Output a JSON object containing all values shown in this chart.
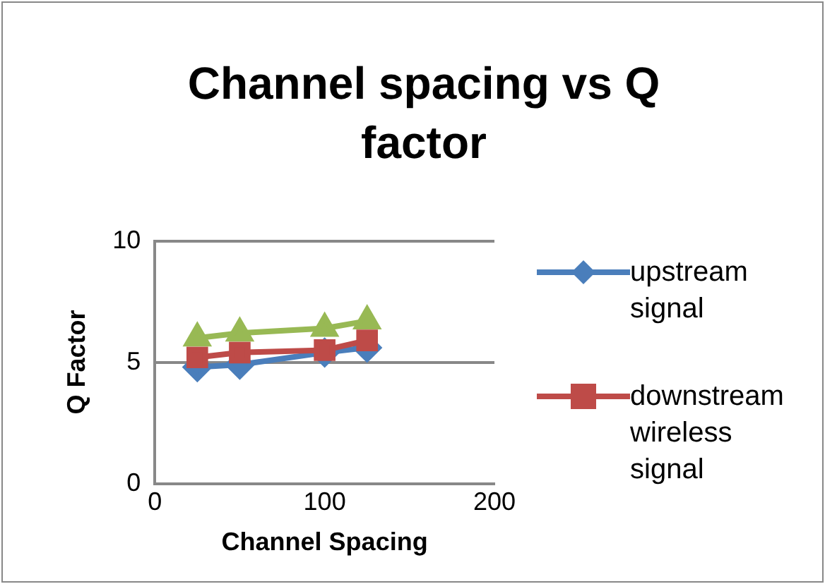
{
  "chart_data": {
    "type": "line",
    "title": "Channel spacing vs Q factor",
    "xlabel": "Channel Spacing",
    "ylabel": "Q Factor",
    "xlim": [
      0,
      200
    ],
    "xticks": [
      0,
      100,
      200
    ],
    "ylim": [
      0,
      10
    ],
    "yticks": [
      0,
      5,
      10
    ],
    "grid": "y",
    "legend": "right",
    "series": [
      {
        "name": "upstream signal",
        "color": "#4a7ebb",
        "marker": "diamond",
        "x": [
          25,
          50,
          100,
          125
        ],
        "values": [
          4.8,
          4.9,
          5.4,
          5.6
        ]
      },
      {
        "name": "downstream wireless signal",
        "color": "#be4b48",
        "marker": "square",
        "x": [
          25,
          50,
          100,
          125
        ],
        "values": [
          5.2,
          5.4,
          5.5,
          5.9
        ]
      },
      {
        "color": "#98b954",
        "marker": "triangle",
        "x": [
          25,
          50,
          100,
          125
        ],
        "values": [
          6.0,
          6.2,
          6.4,
          6.7
        ]
      }
    ]
  }
}
